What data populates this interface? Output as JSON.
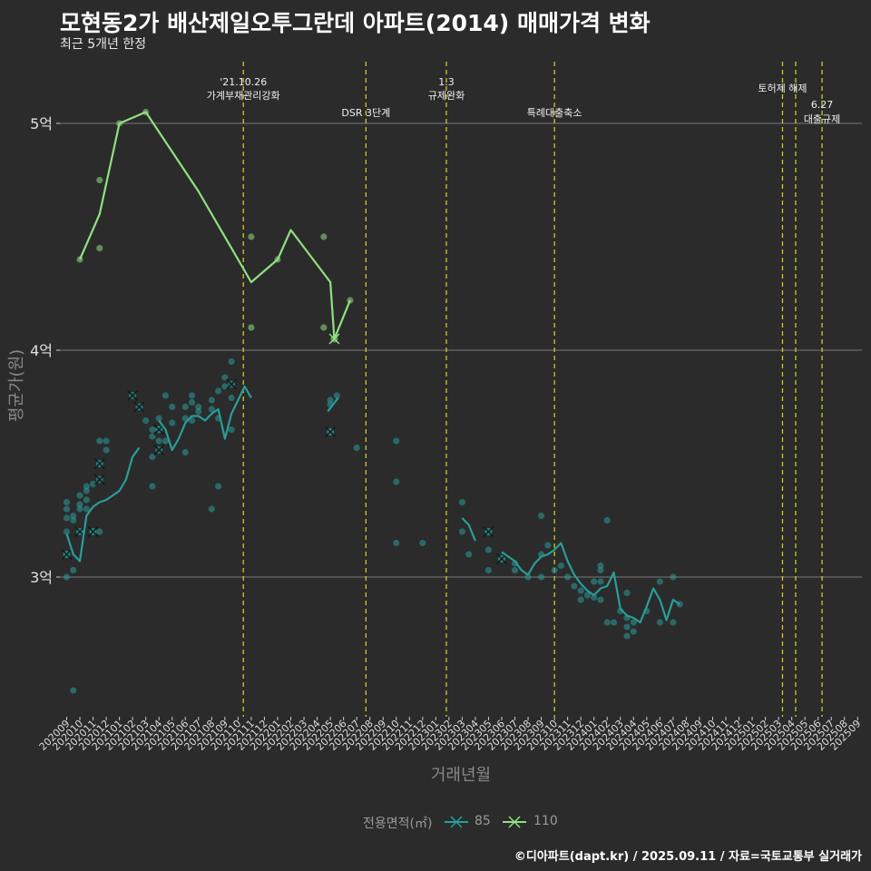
{
  "title": "모현동2가 배산제일오투그란데 아파트(2014) 매매가격 변화",
  "subtitle": "최근 5개년 한정",
  "caption": "©디아파트(dapt.kr) / 2025.09.11 / 자료=국토교통부 실거래가",
  "chart_data": {
    "type": "line",
    "xlabel": "거래년월",
    "ylabel": "평균가(원)",
    "y_ticks": [
      {
        "value": 3.0,
        "label": "3억"
      },
      {
        "value": 4.0,
        "label": "4억"
      },
      {
        "value": 5.0,
        "label": "5억"
      }
    ],
    "ylim": [
      2.4,
      5.3
    ],
    "categories": [
      "202009",
      "202010",
      "202011",
      "202012",
      "202101",
      "202102",
      "202103",
      "202104",
      "202105",
      "202106",
      "202107",
      "202108",
      "202109",
      "202110",
      "202111",
      "202112",
      "202201",
      "202202",
      "202203",
      "202204",
      "202205",
      "202206",
      "202207",
      "202208",
      "202209",
      "202210",
      "202211",
      "202212",
      "202301",
      "202302",
      "202303",
      "202304",
      "202305",
      "202306",
      "202307",
      "202308",
      "202309",
      "202310",
      "202311",
      "202312",
      "202401",
      "202402",
      "202403",
      "202404",
      "202405",
      "202406",
      "202407",
      "202408",
      "202409",
      "202410",
      "202411",
      "202412",
      "202501",
      "202502",
      "202503",
      "202504",
      "202505",
      "202506",
      "202507",
      "202508",
      "202509"
    ],
    "legend_title": "전용면적(㎡)",
    "series": [
      {
        "name": "85",
        "color": "#2a9d9a",
        "segments": [
          [
            [
              0,
              3.19
            ],
            [
              0.5,
              3.1
            ],
            [
              1,
              3.07
            ],
            [
              1.5,
              3.27
            ],
            [
              2,
              3.31
            ],
            [
              2.5,
              3.33
            ],
            [
              3,
              3.34
            ],
            [
              3.5,
              3.36
            ],
            [
              4,
              3.38
            ],
            [
              4.5,
              3.43
            ],
            [
              5,
              3.53
            ],
            [
              5.5,
              3.57
            ]
          ],
          [
            [
              7,
              3.69
            ],
            [
              7.5,
              3.65
            ],
            [
              8,
              3.56
            ],
            [
              8.5,
              3.61
            ],
            [
              9,
              3.68
            ],
            [
              9.5,
              3.71
            ],
            [
              10,
              3.71
            ],
            [
              10.5,
              3.69
            ],
            [
              11,
              3.72
            ],
            [
              11.5,
              3.74
            ],
            [
              12,
              3.61
            ],
            [
              12.5,
              3.72
            ],
            [
              13,
              3.78
            ],
            [
              13.5,
              3.84
            ],
            [
              14,
              3.79
            ]
          ],
          [
            [
              19.8,
              3.73
            ],
            [
              20.6,
              3.79
            ]
          ],
          [
            [
              30,
              3.26
            ],
            [
              30.5,
              3.23
            ],
            [
              31,
              3.16
            ]
          ],
          [
            [
              33,
              3.11
            ],
            [
              33.5,
              3.09
            ],
            [
              34,
              3.07
            ],
            [
              34.5,
              3.03
            ],
            [
              35,
              3.01
            ],
            [
              35.5,
              3.06
            ],
            [
              36,
              3.09
            ],
            [
              36.5,
              3.1
            ],
            [
              37,
              3.12
            ],
            [
              37.5,
              3.15
            ],
            [
              38,
              3.07
            ],
            [
              38.5,
              3.01
            ],
            [
              39,
              2.97
            ],
            [
              39.5,
              2.94
            ],
            [
              40,
              2.92
            ],
            [
              40.5,
              2.95
            ],
            [
              41,
              2.96
            ],
            [
              41.5,
              3.02
            ],
            [
              42,
              2.86
            ],
            [
              42.5,
              2.83
            ],
            [
              43,
              2.82
            ],
            [
              43.5,
              2.8
            ],
            [
              44,
              2.87
            ],
            [
              44.5,
              2.95
            ],
            [
              45,
              2.9
            ],
            [
              45.5,
              2.81
            ],
            [
              46,
              2.9
            ],
            [
              46.5,
              2.88
            ]
          ]
        ],
        "points": [
          [
            0,
            3.33
          ],
          [
            0,
            3.3
          ],
          [
            0,
            3.26
          ],
          [
            0,
            3.2
          ],
          [
            0,
            3.1
          ],
          [
            0,
            3.0
          ],
          [
            0.5,
            3.27
          ],
          [
            0.5,
            3.25
          ],
          [
            0.5,
            3.03
          ],
          [
            0.5,
            2.5
          ],
          [
            1,
            3.36
          ],
          [
            1,
            3.32
          ],
          [
            1,
            3.3
          ],
          [
            1,
            3.2
          ],
          [
            1.5,
            3.34
          ],
          [
            1.5,
            3.3
          ],
          [
            1.5,
            3.38
          ],
          [
            1.5,
            3.4
          ],
          [
            2,
            3.41
          ],
          [
            2,
            3.2
          ],
          [
            2.5,
            3.5
          ],
          [
            2.5,
            3.6
          ],
          [
            2.5,
            3.2
          ],
          [
            3,
            3.6
          ],
          [
            3,
            3.56
          ],
          [
            6,
            3.69
          ],
          [
            6.5,
            3.65
          ],
          [
            6.5,
            3.62
          ],
          [
            6.5,
            3.53
          ],
          [
            6.5,
            3.4
          ],
          [
            7,
            3.7
          ],
          [
            7,
            3.65
          ],
          [
            7,
            3.6
          ],
          [
            7.5,
            3.8
          ],
          [
            7.5,
            3.6
          ],
          [
            8,
            3.75
          ],
          [
            8,
            3.68
          ],
          [
            9,
            3.55
          ],
          [
            9,
            3.7
          ],
          [
            9,
            3.75
          ],
          [
            9.5,
            3.8
          ],
          [
            9.5,
            3.77
          ],
          [
            9.5,
            3.69
          ],
          [
            10,
            3.75
          ],
          [
            10,
            3.73
          ],
          [
            11,
            3.74
          ],
          [
            11,
            3.78
          ],
          [
            11,
            3.3
          ],
          [
            11.5,
            3.7
          ],
          [
            11.5,
            3.82
          ],
          [
            11.5,
            3.4
          ],
          [
            12,
            3.84
          ],
          [
            12,
            3.88
          ],
          [
            12.5,
            3.79
          ],
          [
            12.5,
            3.65
          ],
          [
            12.5,
            3.95
          ],
          [
            20,
            3.64
          ],
          [
            20,
            3.78
          ],
          [
            20,
            3.76
          ],
          [
            20.5,
            3.8
          ],
          [
            22,
            3.57
          ],
          [
            25,
            3.6
          ],
          [
            25,
            3.42
          ],
          [
            25,
            3.15
          ],
          [
            27,
            3.15
          ],
          [
            30,
            3.33
          ],
          [
            30,
            3.2
          ],
          [
            30.5,
            3.1
          ],
          [
            32,
            3.2
          ],
          [
            32,
            3.12
          ],
          [
            32,
            3.03
          ],
          [
            33,
            3.08
          ],
          [
            34,
            3.06
          ],
          [
            34,
            3.03
          ],
          [
            35,
            3.0
          ],
          [
            36,
            3.1
          ],
          [
            36,
            3.27
          ],
          [
            36,
            3.0
          ],
          [
            36.5,
            3.14
          ],
          [
            37,
            3.03
          ],
          [
            37.5,
            3.05
          ],
          [
            38,
            3.0
          ],
          [
            38.5,
            2.96
          ],
          [
            39,
            2.94
          ],
          [
            39,
            2.9
          ],
          [
            39.5,
            2.92
          ],
          [
            40,
            2.98
          ],
          [
            40,
            2.91
          ],
          [
            40.5,
            3.05
          ],
          [
            40.5,
            3.03
          ],
          [
            40.5,
            2.98
          ],
          [
            40.5,
            2.9
          ],
          [
            41,
            3.25
          ],
          [
            41,
            2.8
          ],
          [
            41.5,
            2.8
          ],
          [
            42,
            2.85
          ],
          [
            42.5,
            2.93
          ],
          [
            42.5,
            2.82
          ],
          [
            42.5,
            2.78
          ],
          [
            42.5,
            2.74
          ],
          [
            43,
            2.76
          ],
          [
            43,
            2.8
          ],
          [
            44,
            2.85
          ],
          [
            45,
            2.98
          ],
          [
            45,
            2.8
          ],
          [
            46,
            2.8
          ],
          [
            46,
            3.0
          ],
          [
            46.5,
            2.88
          ]
        ],
        "cross_points": [
          [
            0,
            3.1
          ],
          [
            1,
            3.2
          ],
          [
            2,
            3.2
          ],
          [
            2.5,
            3.5
          ],
          [
            2.5,
            3.43
          ],
          [
            5,
            3.8
          ],
          [
            5.5,
            3.75
          ],
          [
            7,
            3.65
          ],
          [
            7,
            3.56
          ],
          [
            12.5,
            3.85
          ],
          [
            20,
            3.64
          ],
          [
            32,
            3.2
          ],
          [
            33,
            3.08
          ]
        ]
      },
      {
        "name": "110",
        "color": "#90e080",
        "segments": [
          [
            [
              1,
              4.4
            ],
            [
              2.5,
              4.6
            ],
            [
              4,
              5.0
            ],
            [
              6,
              5.05
            ],
            [
              10,
              4.7
            ],
            [
              14,
              4.3
            ],
            [
              16,
              4.4
            ],
            [
              17,
              4.53
            ],
            [
              20,
              4.3
            ],
            [
              20.3,
              4.05
            ],
            [
              21.5,
              4.22
            ]
          ]
        ],
        "points": [
          [
            1,
            4.4
          ],
          [
            2.5,
            4.75
          ],
          [
            2.5,
            4.45
          ],
          [
            4,
            5.0
          ],
          [
            6,
            5.05
          ],
          [
            14,
            4.5
          ],
          [
            14,
            4.1
          ],
          [
            16,
            4.4
          ],
          [
            19.5,
            4.5
          ],
          [
            19.5,
            4.1
          ],
          [
            21.5,
            4.22
          ]
        ],
        "cross_points": [
          [
            20.3,
            4.05
          ]
        ]
      }
    ],
    "events": [
      {
        "x": 13.4,
        "lines": [
          "'21.10.26",
          "가계부채관리강화"
        ]
      },
      {
        "x": 22.7,
        "lines": [
          "DSR 3단계"
        ]
      },
      {
        "x": 28.8,
        "lines": [
          "1.3",
          "규제완화"
        ]
      },
      {
        "x": 37.0,
        "lines": [
          "특례대출축소"
        ]
      },
      {
        "x": 54.3,
        "lines": [
          "토허제 해제"
        ]
      },
      {
        "x": 55.3,
        "lines": []
      },
      {
        "x": 57.3,
        "lines": [
          "6.27",
          "대출규제"
        ]
      }
    ]
  }
}
